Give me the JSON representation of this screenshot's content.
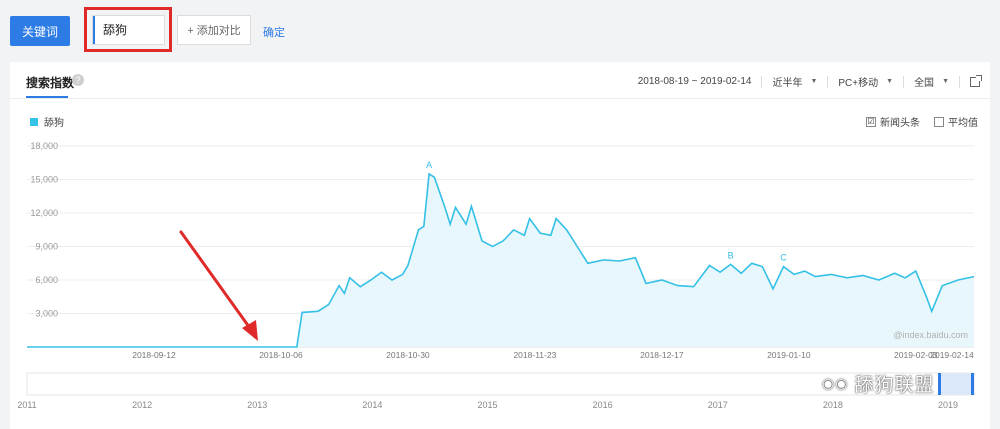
{
  "toolbar": {
    "keyword_button": "关键词",
    "keyword_value": "舔狗",
    "add_compare": "+ 添加对比",
    "confirm": "确定"
  },
  "panel": {
    "tab_title": "搜索指数",
    "help": "?",
    "date_range": "2018-08-19 ~ 2019-02-14",
    "period": "近半年",
    "device": "PC+移动",
    "region": "全国",
    "legend_label": "舔狗",
    "news_label": "新闻头条",
    "average_label": "平均值",
    "news_checked": "☑",
    "avg_checked": "",
    "source_watermark": "@index.baidu.com",
    "brand_watermark": "舔狗联盟"
  },
  "colors": {
    "accent": "#2d7be5",
    "series": "#35c0e6",
    "area_fill": "#e8f7fc",
    "highlight": "#e02a2a"
  },
  "icons": [
    "help-icon",
    "caret-down-icon",
    "external-link-icon",
    "checkbox-icon",
    "arrow-annotation",
    "wechat-icon"
  ],
  "chart_data": {
    "type": "area",
    "series": [
      {
        "name": "舔狗",
        "points": [
          [
            "2018-08-19",
            0
          ],
          [
            "2018-09-12",
            0
          ],
          [
            "2018-10-06",
            0
          ],
          [
            "2018-10-09",
            0
          ],
          [
            "2018-10-10",
            3100
          ],
          [
            "2018-10-13",
            3200
          ],
          [
            "2018-10-15",
            3800
          ],
          [
            "2018-10-17",
            5500
          ],
          [
            "2018-10-18",
            4800
          ],
          [
            "2018-10-19",
            6200
          ],
          [
            "2018-10-21",
            5400
          ],
          [
            "2018-10-23",
            6000
          ],
          [
            "2018-10-25",
            6700
          ],
          [
            "2018-10-27",
            6000
          ],
          [
            "2018-10-29",
            6500
          ],
          [
            "2018-10-30",
            7300
          ],
          [
            "2018-11-01",
            10500
          ],
          [
            "2018-11-02",
            10800
          ],
          [
            "2018-11-03",
            15500
          ],
          [
            "2018-11-04",
            15200
          ],
          [
            "2018-11-06",
            12500
          ],
          [
            "2018-11-07",
            11000
          ],
          [
            "2018-11-08",
            12500
          ],
          [
            "2018-11-10",
            11000
          ],
          [
            "2018-11-11",
            12600
          ],
          [
            "2018-11-13",
            9500
          ],
          [
            "2018-11-15",
            9000
          ],
          [
            "2018-11-17",
            9500
          ],
          [
            "2018-11-19",
            10500
          ],
          [
            "2018-11-21",
            10000
          ],
          [
            "2018-11-22",
            11500
          ],
          [
            "2018-11-24",
            10200
          ],
          [
            "2018-11-26",
            10000
          ],
          [
            "2018-11-27",
            11500
          ],
          [
            "2018-11-29",
            10500
          ],
          [
            "2018-12-01",
            9000
          ],
          [
            "2018-12-03",
            7500
          ],
          [
            "2018-12-06",
            7800
          ],
          [
            "2018-12-09",
            7700
          ],
          [
            "2018-12-12",
            8000
          ],
          [
            "2018-12-14",
            5700
          ],
          [
            "2018-12-17",
            6000
          ],
          [
            "2018-12-20",
            5500
          ],
          [
            "2018-12-23",
            5400
          ],
          [
            "2018-12-26",
            7300
          ],
          [
            "2018-12-28",
            6700
          ],
          [
            "2018-12-30",
            7400
          ],
          [
            "2019-01-01",
            6600
          ],
          [
            "2019-01-03",
            7500
          ],
          [
            "2019-01-05",
            7200
          ],
          [
            "2019-01-07",
            5200
          ],
          [
            "2019-01-09",
            7200
          ],
          [
            "2019-01-11",
            6500
          ],
          [
            "2019-01-13",
            6800
          ],
          [
            "2019-01-15",
            6300
          ],
          [
            "2019-01-18",
            6500
          ],
          [
            "2019-01-21",
            6200
          ],
          [
            "2019-01-24",
            6400
          ],
          [
            "2019-01-27",
            6000
          ],
          [
            "2019-01-30",
            6600
          ],
          [
            "2019-02-01",
            6200
          ],
          [
            "2019-02-03",
            6800
          ],
          [
            "2019-02-05",
            4500
          ],
          [
            "2019-02-06",
            3200
          ],
          [
            "2019-02-08",
            5500
          ],
          [
            "2019-02-11",
            6000
          ],
          [
            "2019-02-14",
            6300
          ]
        ]
      }
    ],
    "x_tick_labels": [
      "2018-09-12",
      "2018-10-06",
      "2018-10-30",
      "2018-11-23",
      "2018-12-17",
      "2019-01-10",
      "2019-02-03",
      "2019-02-14"
    ],
    "y_tick_labels": [
      "3,000",
      "6,000",
      "9,000",
      "12,000",
      "15,000",
      "18,000"
    ],
    "ylim": [
      0,
      18000
    ],
    "xlim": [
      "2018-08-19",
      "2019-02-14"
    ],
    "annotations": [
      {
        "label": "A",
        "date": "2018-11-03",
        "value": 15500
      },
      {
        "label": "B",
        "date": "2018-12-30",
        "value": 7400
      },
      {
        "label": "C",
        "date": "2019-01-09",
        "value": 7200
      }
    ],
    "timeline_years": [
      "2011",
      "2012",
      "2013",
      "2014",
      "2015",
      "2016",
      "2017",
      "2018",
      "2019"
    ],
    "grid": true,
    "legend_position": "top-left"
  }
}
